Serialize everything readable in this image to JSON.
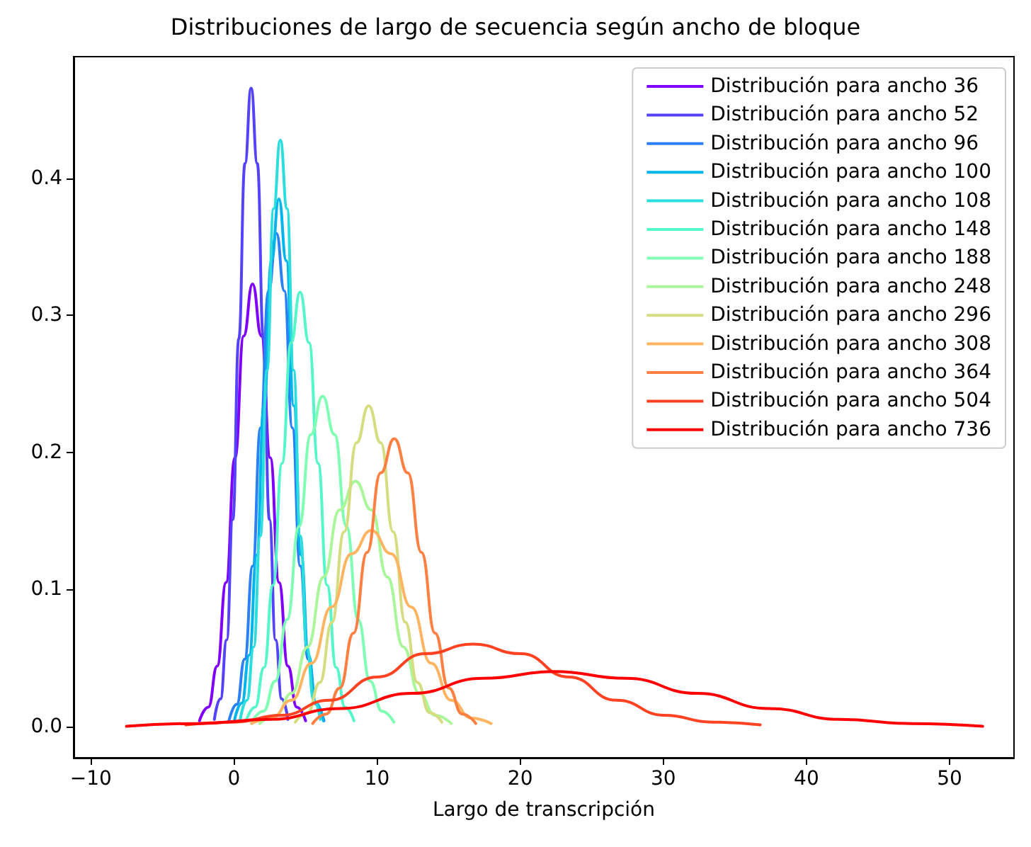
{
  "chart_data": {
    "type": "line",
    "title": "Distribuciones de largo de secuencia según ancho de bloque",
    "xlabel": "Largo de transcripción",
    "xlim": [
      -11.2,
      54.5
    ],
    "ylim": [
      -0.023,
      0.489
    ],
    "xticks": [
      {
        "value": -10,
        "label": "−10"
      },
      0,
      10,
      20,
      30,
      40,
      50
    ],
    "yticks": [
      {
        "value": 0,
        "label": "0.0"
      },
      0.1,
      0.2,
      0.3,
      0.4
    ],
    "grid": false,
    "legend": "top right",
    "marker": "none",
    "line_style": "solid",
    "series": [
      {
        "name": "Distribución para ancho 36",
        "color": "#8000ff",
        "x": [
          -2.41,
          -1.79,
          -1.17,
          -0.55,
          0.07,
          0.68,
          1.3,
          1.92,
          2.54,
          3.15,
          3.77,
          4.39,
          5.01
        ],
        "values": [
          0.004,
          0.014,
          0.044,
          0.105,
          0.196,
          0.285,
          0.323,
          0.285,
          0.196,
          0.105,
          0.044,
          0.014,
          0.004
        ]
      },
      {
        "name": "Distribución para ancho 52",
        "color": "#5542fd",
        "x": [
          -1.37,
          -0.94,
          -0.51,
          -0.08,
          0.34,
          0.77,
          1.2,
          1.63,
          2.06,
          2.48,
          2.91,
          3.34,
          3.77
        ],
        "values": [
          0.005,
          0.02,
          0.063,
          0.151,
          0.283,
          0.411,
          0.466,
          0.411,
          0.283,
          0.151,
          0.063,
          0.02,
          0.005
        ]
      },
      {
        "name": "Distribución para ancho 96",
        "color": "#2b80f6",
        "x": [
          -0.35,
          0.2,
          0.75,
          1.31,
          1.86,
          2.42,
          2.97,
          3.52,
          4.08,
          4.63,
          5.19,
          5.74,
          6.29
        ],
        "values": [
          0.004,
          0.016,
          0.049,
          0.117,
          0.218,
          0.318,
          0.36,
          0.318,
          0.218,
          0.117,
          0.049,
          0.016,
          0.004
        ]
      },
      {
        "name": "Distribución para ancho 100",
        "color": "#00b4ec",
        "x": [
          0.03,
          0.55,
          1.07,
          1.59,
          2.1,
          2.62,
          3.14,
          3.66,
          4.18,
          4.69,
          5.21,
          5.73,
          6.25
        ],
        "values": [
          0.004,
          0.017,
          0.052,
          0.125,
          0.234,
          0.34,
          0.385,
          0.34,
          0.234,
          0.125,
          0.052,
          0.017,
          0.004
        ]
      },
      {
        "name": "Distribución para ancho 108",
        "color": "#2bdddd",
        "x": [
          0.44,
          0.91,
          1.38,
          1.84,
          2.31,
          2.77,
          3.24,
          3.71,
          4.17,
          4.64,
          5.1,
          5.57,
          6.04
        ],
        "values": [
          0.005,
          0.019,
          0.058,
          0.139,
          0.26,
          0.378,
          0.428,
          0.378,
          0.26,
          0.139,
          0.058,
          0.019,
          0.005
        ]
      },
      {
        "name": "Distribución para ancho 148",
        "color": "#55f6ca",
        "x": [
          0.85,
          1.48,
          2.1,
          2.73,
          3.36,
          3.99,
          4.62,
          5.25,
          5.88,
          6.51,
          7.14,
          7.76,
          8.39
        ],
        "values": [
          0.004,
          0.014,
          0.043,
          0.103,
          0.192,
          0.28,
          0.317,
          0.28,
          0.192,
          0.103,
          0.043,
          0.014,
          0.004
        ]
      },
      {
        "name": "Distribución para ancho 188",
        "color": "#80ffb4",
        "x": [
          1.24,
          2.06,
          2.89,
          3.72,
          4.55,
          5.37,
          6.2,
          7.03,
          7.86,
          8.68,
          9.51,
          10.34,
          11.17
        ],
        "values": [
          0.003,
          0.011,
          0.033,
          0.078,
          0.146,
          0.213,
          0.241,
          0.213,
          0.146,
          0.078,
          0.033,
          0.011,
          0.003
        ]
      },
      {
        "name": "Distribución para ancho 248",
        "color": "#aaf69b",
        "x": [
          1.8,
          2.92,
          4.03,
          5.15,
          6.26,
          7.38,
          8.49,
          9.6,
          10.72,
          11.83,
          12.95,
          14.06,
          15.18
        ],
        "values": [
          0.002,
          0.008,
          0.024,
          0.058,
          0.109,
          0.158,
          0.179,
          0.158,
          0.109,
          0.058,
          0.024,
          0.008,
          0.002
        ]
      },
      {
        "name": "Distribución para ancho 296",
        "color": "#d5dd80",
        "x": [
          4.29,
          5.15,
          6.0,
          6.85,
          7.7,
          8.56,
          9.41,
          10.26,
          11.12,
          11.97,
          12.82,
          13.67,
          14.53
        ],
        "values": [
          0.003,
          0.01,
          0.032,
          0.076,
          0.142,
          0.207,
          0.234,
          0.207,
          0.142,
          0.076,
          0.032,
          0.01,
          0.003
        ]
      },
      {
        "name": "Distribución para ancho 308",
        "color": "#ffb462",
        "x": [
          1.23,
          2.63,
          4.02,
          5.42,
          6.81,
          8.21,
          9.6,
          10.99,
          12.39,
          13.78,
          15.18,
          16.58,
          17.97
        ],
        "values": [
          0.002,
          0.006,
          0.019,
          0.046,
          0.087,
          0.126,
          0.143,
          0.126,
          0.087,
          0.046,
          0.019,
          0.006,
          0.002
        ]
      },
      {
        "name": "Distribución para ancho 364",
        "color": "#ff8042",
        "x": [
          5.5,
          6.45,
          7.4,
          8.35,
          9.3,
          10.25,
          11.2,
          12.15,
          13.1,
          14.05,
          15.0,
          15.95,
          16.9
        ],
        "values": [
          0.002,
          0.009,
          0.028,
          0.068,
          0.127,
          0.185,
          0.21,
          0.185,
          0.127,
          0.068,
          0.028,
          0.009,
          0.002
        ]
      },
      {
        "name": "Distribución para ancho 504",
        "color": "#ff4221",
        "x": [
          -3.37,
          -0.03,
          3.32,
          6.66,
          10.01,
          13.36,
          16.7,
          20.05,
          23.39,
          26.74,
          30.08,
          33.43,
          36.77
        ],
        "values": [
          0.001,
          0.003,
          0.008,
          0.019,
          0.036,
          0.053,
          0.06,
          0.053,
          0.036,
          0.019,
          0.008,
          0.003,
          0.001
        ]
      },
      {
        "name": "Distribución para ancho 736",
        "color": "#ff0000",
        "x": [
          -7.51,
          -2.53,
          2.46,
          7.44,
          12.43,
          17.42,
          22.4,
          27.39,
          32.37,
          37.36,
          42.34,
          47.33,
          52.31
        ],
        "values": [
          0.0,
          0.002,
          0.005,
          0.013,
          0.024,
          0.035,
          0.04,
          0.035,
          0.024,
          0.013,
          0.005,
          0.002,
          0.0
        ]
      }
    ]
  }
}
